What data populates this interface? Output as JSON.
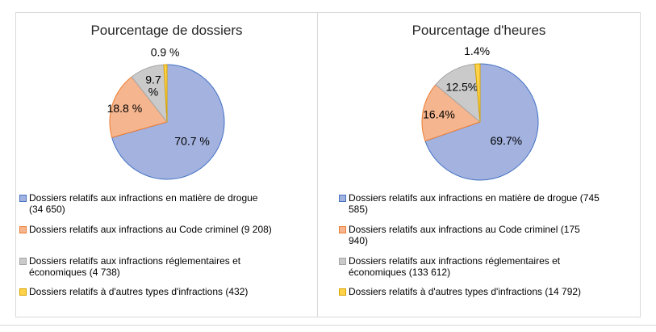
{
  "colors": {
    "background": "#ffffff",
    "panel_border": "#d9d9d9",
    "title_text": "#262626",
    "label_text": "#000000"
  },
  "chart_data": [
    {
      "type": "pie",
      "title": "Pourcentage de dossiers",
      "start_angle_deg": 0,
      "direction": "clockwise",
      "legend_position": "bottom-left",
      "slices": [
        {
          "name": "Dossiers relatifs aux infractions en matière de drogue",
          "value": 34650,
          "pct": 70.7,
          "pct_label": "70.7 %",
          "legend_label": "Dossiers relatifs aux infractions en matière de drogue\n(34 650)",
          "fill": "#a3b2df",
          "stroke": "#4472c4"
        },
        {
          "name": "Dossiers relatifs aux infractions au Code criminel",
          "value": 9208,
          "pct": 18.8,
          "pct_label": "18.8 %",
          "legend_label": "Dossiers relatifs aux infractions au Code criminel (9 208)",
          "fill": "#f5b58f",
          "stroke": "#ed7d31"
        },
        {
          "name": "Dossiers relatifs aux infractions réglementaires et économiques",
          "value": 4738,
          "pct": 9.7,
          "pct_label": "9.7\n%",
          "legend_label": "Dossiers relatifs aux infractions réglementaires et\néconomiques (4 738)",
          "fill": "#cacaca",
          "stroke": "#a6a6a6"
        },
        {
          "name": "Dossiers relatifs à d'autres types d'infractions",
          "value": 432,
          "pct": 0.9,
          "pct_label": "0.9 %",
          "legend_label": "Dossiers relatifs à d'autres types d'infractions (432)",
          "fill": "#ffd24b",
          "stroke": "#d6a300"
        }
      ]
    },
    {
      "type": "pie",
      "title": "Pourcentage d'heures",
      "start_angle_deg": 0,
      "direction": "clockwise",
      "legend_position": "bottom-left",
      "slices": [
        {
          "name": "Dossiers relatifs aux infractions en matière de drogue",
          "value": 745585,
          "pct": 69.7,
          "pct_label": "69.7%",
          "legend_label": "Dossiers relatifs aux infractions en matière de drogue (745\n585)",
          "fill": "#a3b2df",
          "stroke": "#4472c4"
        },
        {
          "name": "Dossiers relatifs aux infractions au Code criminel",
          "value": 175940,
          "pct": 16.4,
          "pct_label": "16.4%",
          "legend_label": "Dossiers relatifs aux infractions au Code criminel (175\n940)",
          "fill": "#f5b58f",
          "stroke": "#ed7d31"
        },
        {
          "name": "Dossiers relatifs aux infractions réglementaires et économiques",
          "value": 133612,
          "pct": 12.5,
          "pct_label": "12.5%",
          "legend_label": "Dossiers relatifs aux infractions réglementaires et\néconomiques (133 612)",
          "fill": "#cacaca",
          "stroke": "#a6a6a6"
        },
        {
          "name": "Dossiers relatifs à d'autres types d'infractions",
          "value": 14792,
          "pct": 1.4,
          "pct_label": "1.4%",
          "legend_label": "Dossiers relatifs à d'autres types d'infractions (14 792)",
          "fill": "#ffd24b",
          "stroke": "#d6a300"
        }
      ]
    }
  ]
}
